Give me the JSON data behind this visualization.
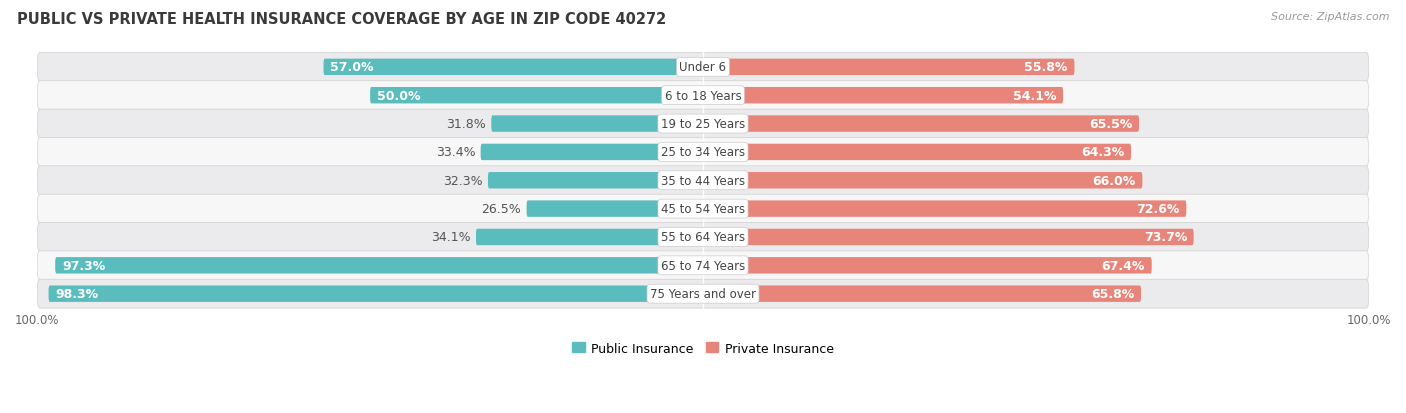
{
  "title": "PUBLIC VS PRIVATE HEALTH INSURANCE COVERAGE BY AGE IN ZIP CODE 40272",
  "source": "Source: ZipAtlas.com",
  "categories": [
    "Under 6",
    "6 to 18 Years",
    "19 to 25 Years",
    "25 to 34 Years",
    "35 to 44 Years",
    "45 to 54 Years",
    "55 to 64 Years",
    "65 to 74 Years",
    "75 Years and over"
  ],
  "public_values": [
    57.0,
    50.0,
    31.8,
    33.4,
    32.3,
    26.5,
    34.1,
    97.3,
    98.3
  ],
  "private_values": [
    55.8,
    54.1,
    65.5,
    64.3,
    66.0,
    72.6,
    73.7,
    67.4,
    65.8
  ],
  "public_color": "#5bbcbe",
  "private_color": "#e8857a",
  "row_bg_color_light": "#f7f7f8",
  "row_bg_color_dark": "#ebebed",
  "title_color": "#3a3a3a",
  "source_color": "#999999",
  "max_value": 100.0,
  "bar_height": 0.58,
  "label_fontsize": 9.0,
  "title_fontsize": 10.5,
  "source_fontsize": 8.0,
  "category_fontsize": 8.5
}
